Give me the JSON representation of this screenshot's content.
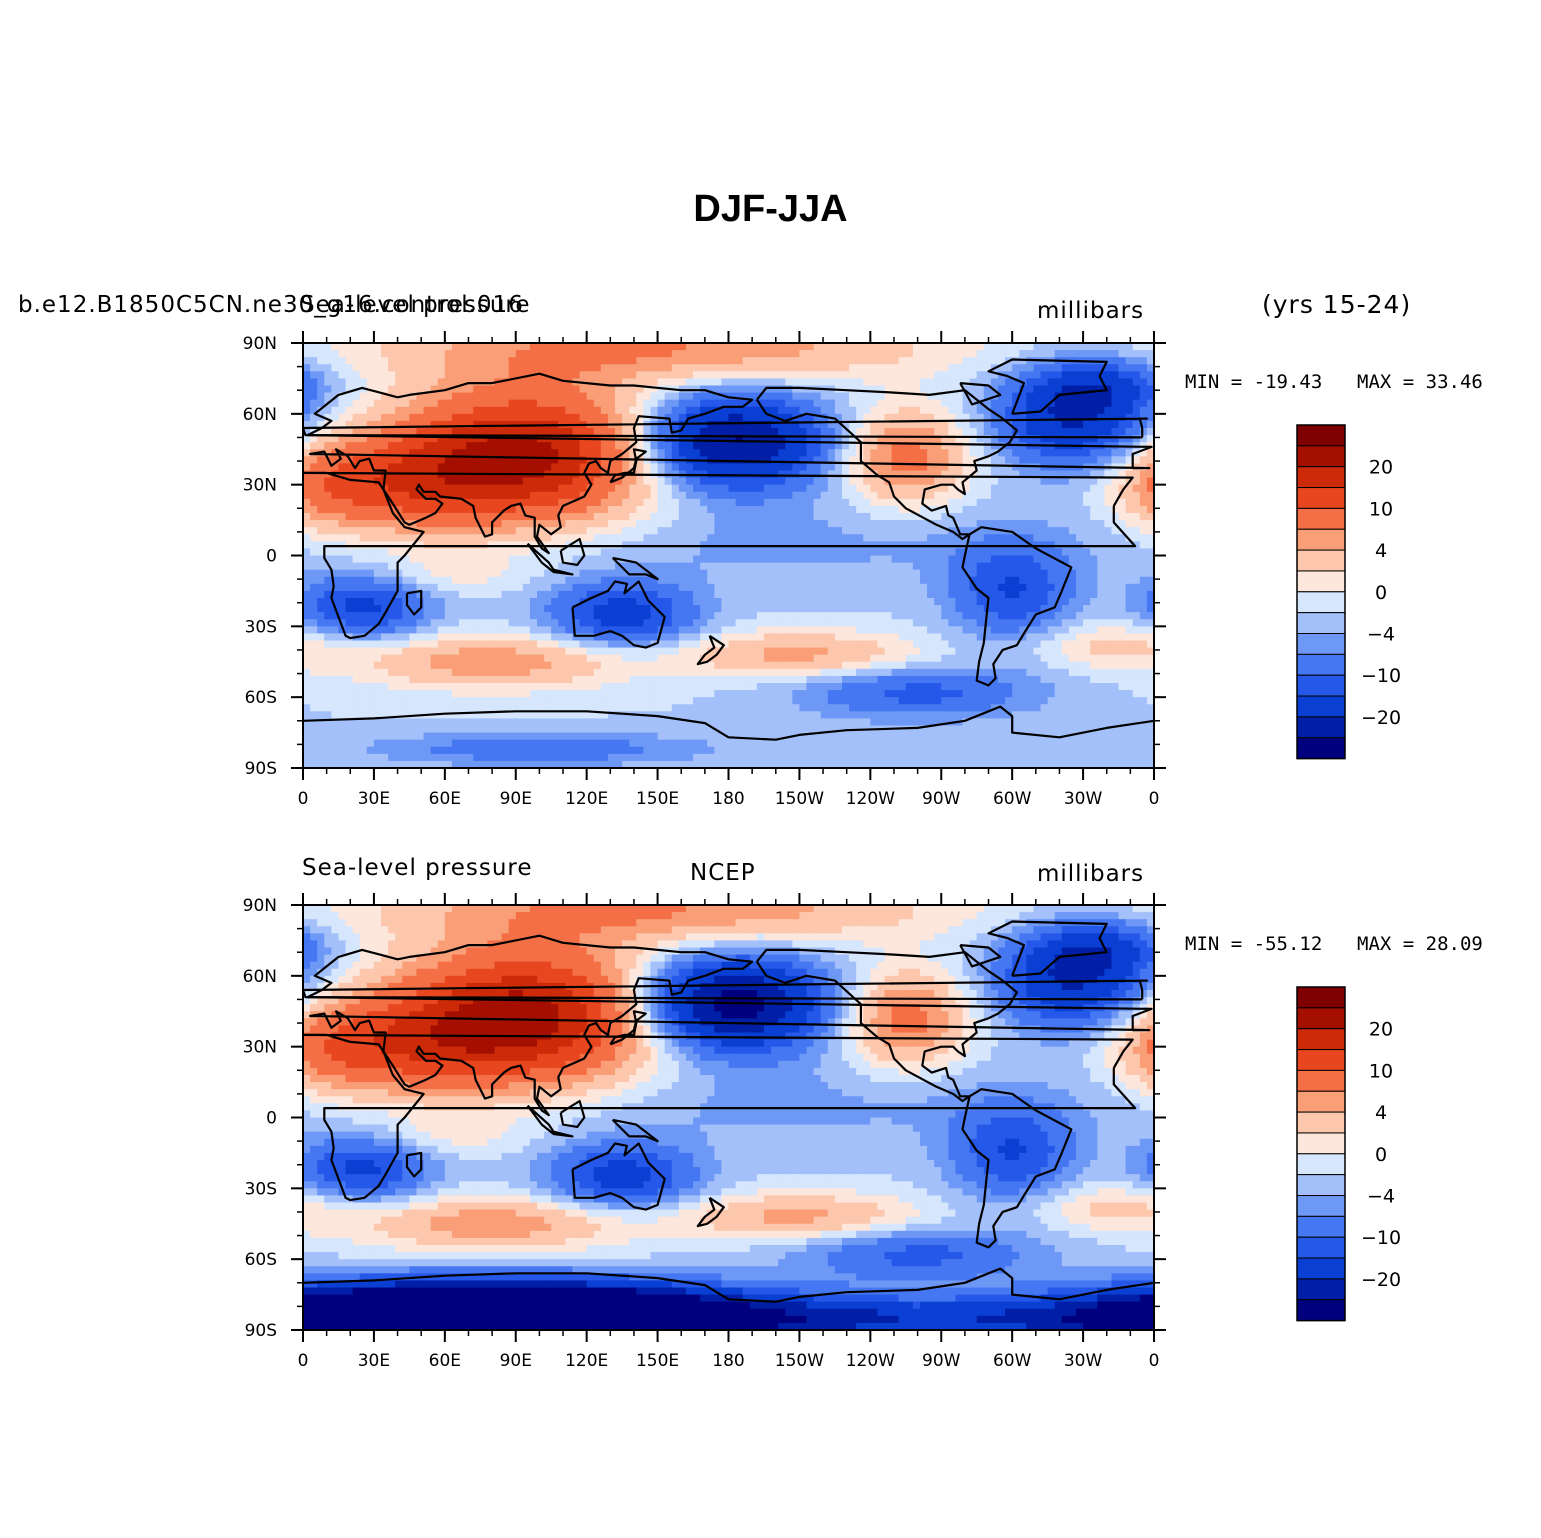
{
  "title": "DJF-JJA",
  "levels": [
    -20,
    -15,
    -10,
    -7,
    -4,
    -2,
    0,
    2,
    4,
    7,
    10,
    15,
    20,
    25
  ],
  "colors": [
    "#00007f",
    "#001fa6",
    "#0a3fd4",
    "#2558e8",
    "#4677f2",
    "#6e98f6",
    "#a3c0fa",
    "#d5e6fd",
    "#fde7dc",
    "#fcc7ad",
    "#f99e77",
    "#f46f46",
    "#e8461f",
    "#cc2a08",
    "#a50f00",
    "#7f0000"
  ],
  "colorbar_labels": [
    "20",
    "10",
    "4",
    "0",
    "-4",
    "-10",
    "-20"
  ],
  "lon_ticks": [
    "0",
    "30E",
    "60E",
    "90E",
    "120E",
    "150E",
    "180",
    "150W",
    "120W",
    "90W",
    "60W",
    "30W",
    "0"
  ],
  "lat_ticks": [
    "90N",
    "60N",
    "30N",
    "0",
    "30S",
    "60S",
    "90S"
  ],
  "panels": [
    {
      "left_label": "b.e12.B1850C5CN.ne30_g16.control.016",
      "left_label_overlap": "Sea-level pressure",
      "center_label": "",
      "units": "millibars",
      "years": "(yrs 15-24)",
      "min_text": "MIN = -19.43",
      "max_text": "MAX =  33.46",
      "min": -19.43,
      "max": 33.46
    },
    {
      "left_label": "Sea-level pressure",
      "center_label": "NCEP",
      "units": "millibars",
      "min_text": "MIN = -55.12",
      "max_text": "MAX =  28.09",
      "min": -55.12,
      "max": 28.09
    }
  ]
}
